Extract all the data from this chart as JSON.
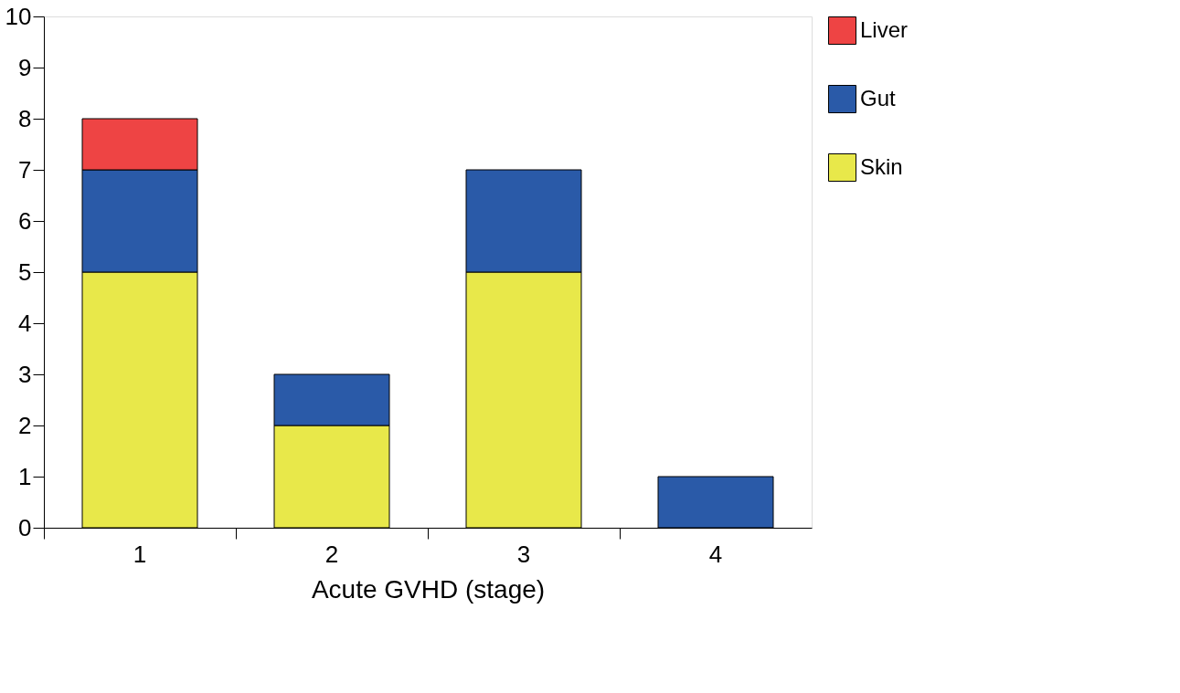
{
  "chart_data": {
    "type": "bar",
    "stacked": true,
    "xlabel": "Acute GVHD (stage)",
    "categories": [
      "1",
      "2",
      "3",
      "4"
    ],
    "series": [
      {
        "name": "Skin",
        "color": "#e8e84a",
        "values": [
          5,
          2,
          5,
          0
        ]
      },
      {
        "name": "Gut",
        "color": "#2a5aa8",
        "values": [
          2,
          1,
          2,
          1
        ]
      },
      {
        "name": "Liver",
        "color": "#ee4444",
        "values": [
          1,
          0,
          0,
          0
        ]
      }
    ],
    "ylim": [
      0,
      10
    ],
    "yticks": [
      0,
      1,
      2,
      3,
      4,
      5,
      6,
      7,
      8,
      9,
      10
    ],
    "grid": false,
    "legend": "top right"
  }
}
